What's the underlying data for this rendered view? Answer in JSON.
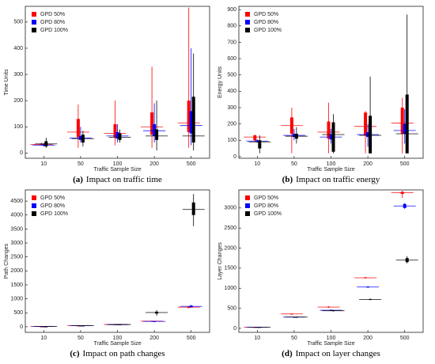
{
  "chart_data": [
    {
      "type": "box",
      "caption_label": "(a)",
      "caption": "Impact on traffic time",
      "x_label": "Traffic Sample Size",
      "y_label": "Time Units",
      "categories": [
        "10",
        "50",
        "100",
        "200",
        "500"
      ],
      "ylim": [
        -20,
        560
      ],
      "yticks": [
        0,
        100,
        200,
        300,
        400,
        500
      ],
      "legend": "upper left",
      "series": [
        {
          "name": "GPD 50%",
          "color": "#ff0000",
          "min": [
            28,
            20,
            30,
            20,
            20
          ],
          "q1": [
            30,
            60,
            60,
            70,
            80
          ],
          "median": [
            33,
            80,
            75,
            100,
            115
          ],
          "q3": [
            36,
            130,
            110,
            155,
            200
          ],
          "max": [
            40,
            185,
            200,
            330,
            555
          ]
        },
        {
          "name": "GPD 80%",
          "color": "#0000ff",
          "min": [
            25,
            40,
            40,
            40,
            30
          ],
          "q1": [
            28,
            50,
            55,
            65,
            75
          ],
          "median": [
            30,
            57,
            65,
            85,
            105
          ],
          "q3": [
            33,
            65,
            80,
            110,
            160
          ],
          "max": [
            38,
            100,
            110,
            190,
            400
          ]
        },
        {
          "name": "GPD 100%",
          "color": "#000000",
          "min": [
            20,
            25,
            40,
            10,
            10
          ],
          "q1": [
            25,
            40,
            50,
            50,
            40
          ],
          "median": [
            35,
            55,
            60,
            65,
            65
          ],
          "q3": [
            45,
            70,
            75,
            90,
            215
          ],
          "max": [
            58,
            85,
            90,
            200,
            380
          ]
        }
      ]
    },
    {
      "type": "box",
      "caption_label": "(b)",
      "caption": "Impact on traffic energy",
      "x_label": "Traffic Sample Size",
      "y_label": "Energy Units",
      "categories": [
        "10",
        "50",
        "100",
        "200",
        "500"
      ],
      "ylim": [
        -10,
        920
      ],
      "yticks": [
        0,
        100,
        200,
        300,
        400,
        500,
        600,
        700,
        800,
        900
      ],
      "legend": "upper left",
      "series": [
        {
          "name": "GPD 50%",
          "color": "#ff0000",
          "min": [
            90,
            20,
            20,
            20,
            20
          ],
          "q1": [
            100,
            140,
            110,
            130,
            140
          ],
          "median": [
            120,
            190,
            150,
            185,
            205
          ],
          "q3": [
            130,
            240,
            215,
            270,
            300
          ],
          "max": [
            135,
            300,
            330,
            280,
            360
          ]
        },
        {
          "name": "GPD 80%",
          "color": "#0000ff",
          "min": [
            85,
            100,
            80,
            60,
            80
          ],
          "q1": [
            90,
            120,
            105,
            120,
            140
          ],
          "median": [
            95,
            130,
            120,
            135,
            160
          ],
          "q3": [
            100,
            140,
            135,
            150,
            200
          ],
          "max": [
            105,
            170,
            170,
            200,
            290
          ]
        },
        {
          "name": "GPD 100%",
          "color": "#000000",
          "min": [
            20,
            80,
            20,
            20,
            20
          ],
          "q1": [
            50,
            110,
            30,
            20,
            20
          ],
          "median": [
            90,
            125,
            135,
            130,
            140
          ],
          "q3": [
            100,
            140,
            210,
            250,
            380
          ],
          "max": [
            130,
            180,
            260,
            490,
            870
          ]
        }
      ]
    },
    {
      "type": "box",
      "caption_label": "(c)",
      "caption": "Impact on path changes",
      "x_label": "Traffic Sample Size",
      "y_label": "Path Changes",
      "categories": [
        "10",
        "50",
        "100",
        "200",
        "500"
      ],
      "ylim": [
        -200,
        4900
      ],
      "yticks": [
        0,
        500,
        1000,
        1500,
        2000,
        2500,
        3000,
        3500,
        4000,
        4500
      ],
      "legend": "upper left",
      "series": [
        {
          "name": "GPD 50%",
          "color": "#ff0000",
          "min": [
            8,
            35,
            70,
            180,
            660
          ],
          "q1": [
            9,
            38,
            75,
            190,
            680
          ],
          "median": [
            10,
            40,
            80,
            200,
            700
          ],
          "q3": [
            11,
            42,
            85,
            210,
            720
          ],
          "max": [
            12,
            45,
            90,
            220,
            740
          ]
        },
        {
          "name": "GPD 80%",
          "color": "#0000ff",
          "min": [
            8,
            35,
            70,
            170,
            680
          ],
          "q1": [
            9,
            38,
            75,
            180,
            700
          ],
          "median": [
            10,
            40,
            80,
            190,
            730
          ],
          "q3": [
            11,
            42,
            85,
            200,
            760
          ],
          "max": [
            12,
            45,
            90,
            210,
            780
          ]
        },
        {
          "name": "GPD 100%",
          "color": "#000000",
          "min": [
            8,
            35,
            70,
            400,
            3600
          ],
          "q1": [
            9,
            38,
            75,
            470,
            4000
          ],
          "median": [
            10,
            40,
            80,
            510,
            4200
          ],
          "q3": [
            11,
            42,
            85,
            540,
            4450
          ],
          "max": [
            12,
            45,
            90,
            600,
            4750
          ]
        }
      ]
    },
    {
      "type": "box",
      "caption_label": "(d)",
      "caption": "Impact on layer changes",
      "x_label": "Traffic Sample Size",
      "y_label": "Layer Changes",
      "categories": [
        "10",
        "50",
        "100",
        "200",
        "500"
      ],
      "ylim": [
        -100,
        3450
      ],
      "yticks": [
        0,
        500,
        1000,
        1500,
        2000,
        2500,
        3000
      ],
      "legend": "upper left",
      "series": [
        {
          "name": "GPD 50%",
          "color": "#ff0000",
          "min": [
            25,
            350,
            510,
            1240,
            3250
          ],
          "q1": [
            28,
            355,
            520,
            1250,
            3350
          ],
          "median": [
            30,
            360,
            530,
            1260,
            3380
          ],
          "q3": [
            32,
            365,
            540,
            1270,
            3400
          ],
          "max": [
            35,
            370,
            550,
            1280,
            3430
          ]
        },
        {
          "name": "GPD 80%",
          "color": "#0000ff",
          "min": [
            25,
            270,
            430,
            1010,
            2980
          ],
          "q1": [
            28,
            275,
            440,
            1020,
            3000
          ],
          "median": [
            30,
            280,
            450,
            1030,
            3050
          ],
          "q3": [
            32,
            285,
            460,
            1040,
            3100
          ],
          "max": [
            35,
            290,
            470,
            1050,
            3120
          ]
        },
        {
          "name": "GPD 100%",
          "color": "#000000",
          "min": [
            25,
            270,
            420,
            700,
            1620
          ],
          "q1": [
            28,
            275,
            430,
            710,
            1650
          ],
          "median": [
            30,
            280,
            440,
            720,
            1700
          ],
          "q3": [
            32,
            285,
            450,
            730,
            1750
          ],
          "max": [
            35,
            290,
            460,
            740,
            1800
          ]
        }
      ]
    }
  ]
}
